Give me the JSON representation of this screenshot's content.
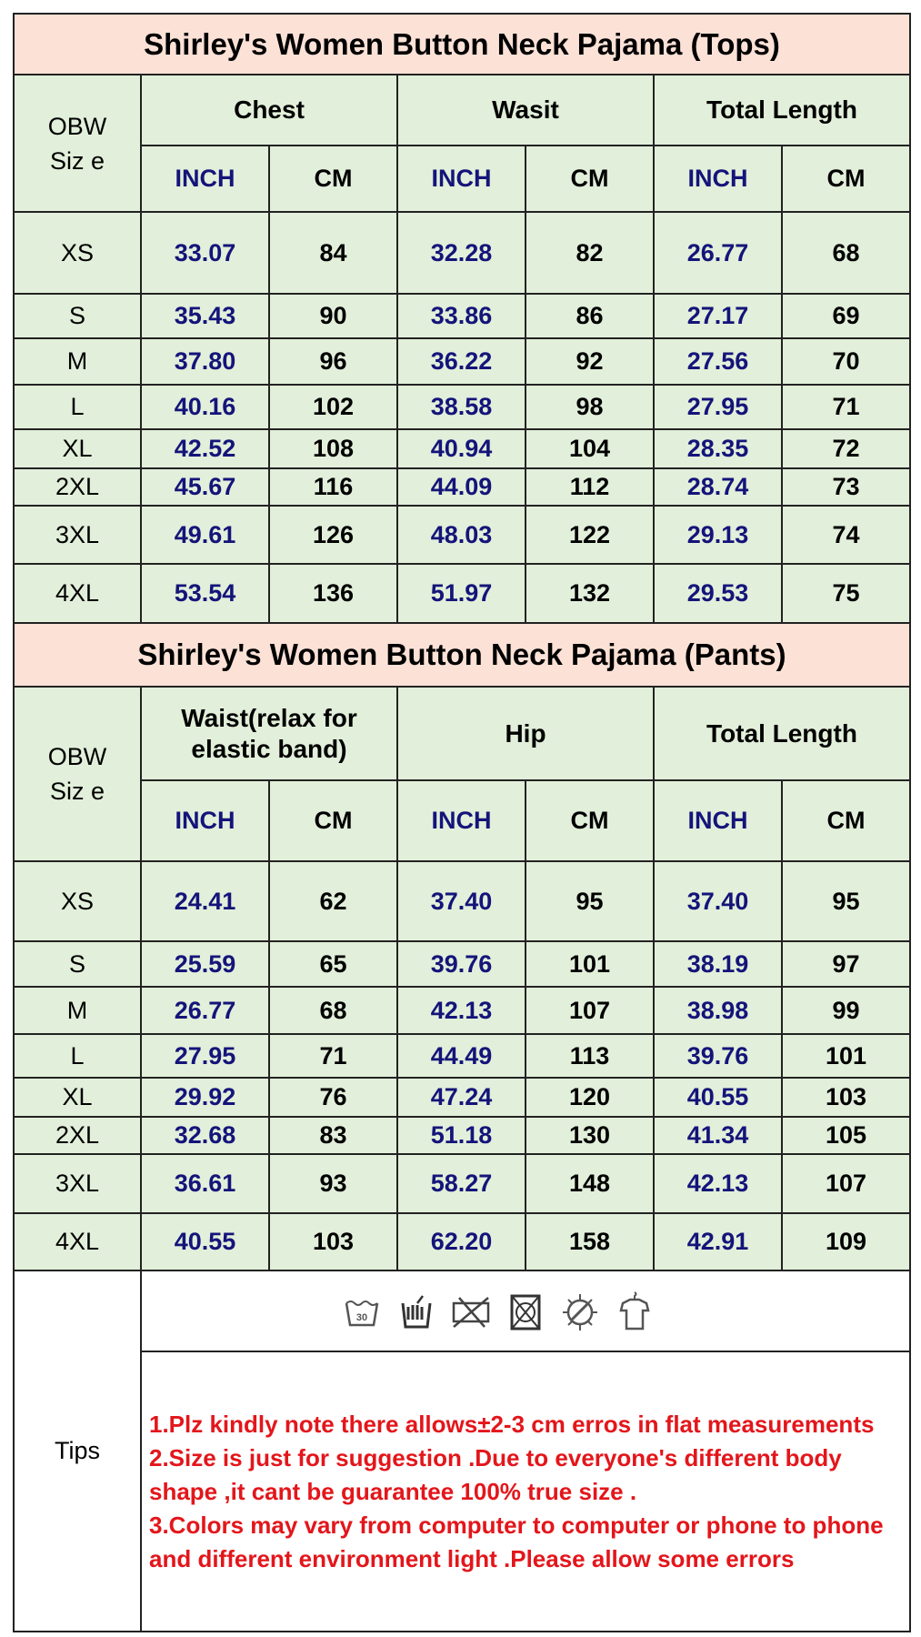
{
  "tops": {
    "title": "Shirley's Women Button Neck Pajama (Tops)",
    "size_label": [
      "OBW",
      "Siz e"
    ],
    "groups": [
      "Chest",
      "Wasit",
      "Total Length"
    ],
    "units": [
      "INCH",
      "CM",
      "INCH",
      "CM",
      "INCH",
      "CM"
    ],
    "rows": [
      {
        "size": "XS",
        "values": [
          "33.07",
          "84",
          "32.28",
          "82",
          "26.77",
          "68"
        ]
      },
      {
        "size": "S",
        "values": [
          "35.43",
          "90",
          "33.86",
          "86",
          "27.17",
          "69"
        ]
      },
      {
        "size": "M",
        "values": [
          "37.80",
          "96",
          "36.22",
          "92",
          "27.56",
          "70"
        ]
      },
      {
        "size": "L",
        "values": [
          "40.16",
          "102",
          "38.58",
          "98",
          "27.95",
          "71"
        ]
      },
      {
        "size": "XL",
        "values": [
          "42.52",
          "108",
          "40.94",
          "104",
          "28.35",
          "72"
        ]
      },
      {
        "size": "2XL",
        "values": [
          "45.67",
          "116",
          "44.09",
          "112",
          "28.74",
          "73"
        ]
      },
      {
        "size": "3XL",
        "values": [
          "49.61",
          "126",
          "48.03",
          "122",
          "29.13",
          "74"
        ]
      },
      {
        "size": "4XL",
        "values": [
          "53.54",
          "136",
          "51.97",
          "132",
          "29.53",
          "75"
        ]
      }
    ]
  },
  "pants": {
    "title": "Shirley's Women Button Neck Pajama (Pants)",
    "size_label": [
      "OBW",
      "Siz e"
    ],
    "groups": [
      "Waist(relax for elastic band)",
      "Hip",
      "Total Length"
    ],
    "units": [
      "INCH",
      "CM",
      "INCH",
      "CM",
      "INCH",
      "CM"
    ],
    "rows": [
      {
        "size": "XS",
        "values": [
          "24.41",
          "62",
          "37.40",
          "95",
          "37.40",
          "95"
        ]
      },
      {
        "size": "S",
        "values": [
          "25.59",
          "65",
          "39.76",
          "101",
          "38.19",
          "97"
        ]
      },
      {
        "size": "M",
        "values": [
          "26.77",
          "68",
          "42.13",
          "107",
          "38.98",
          "99"
        ]
      },
      {
        "size": "L",
        "values": [
          "27.95",
          "71",
          "44.49",
          "113",
          "39.76",
          "101"
        ]
      },
      {
        "size": "XL",
        "values": [
          "29.92",
          "76",
          "47.24",
          "120",
          "40.55",
          "103"
        ]
      },
      {
        "size": "2XL",
        "values": [
          "32.68",
          "83",
          "51.18",
          "130",
          "41.34",
          "105"
        ]
      },
      {
        "size": "3XL",
        "values": [
          "36.61",
          "93",
          "58.27",
          "148",
          "42.13",
          "107"
        ]
      },
      {
        "size": "4XL",
        "values": [
          "40.55",
          "103",
          "62.20",
          "158",
          "42.91",
          "109"
        ]
      }
    ]
  },
  "tips": {
    "label": "Tips",
    "care_icons": [
      "wash-30-icon",
      "hand-wash-icon",
      "do-not-bleach-icon",
      "tumble-dry-icon",
      "do-not-iron-icon",
      "hang-dry-icon"
    ],
    "lines": [
      "1.Plz kindly note there allows±2-3 cm erros in flat measurements",
      "2.Size is just for suggestion .Due to everyone's different body shape ,it cant be guarantee 100% true size .",
      "3.Colors may  vary from computer to computer or phone to phone and different environment light .Please allow some errors"
    ]
  },
  "colors": {
    "title_bg": "#fbe1d6",
    "cell_bg": "#e2efda",
    "inch_text": "#14147a",
    "tips_text": "#e3161b"
  }
}
